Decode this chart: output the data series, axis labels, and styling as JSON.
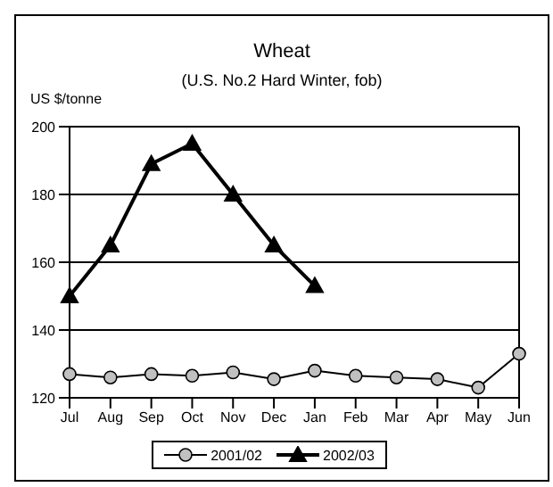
{
  "chart_data": {
    "type": "line",
    "title": "Wheat",
    "subtitle": "(U.S. No.2 Hard Winter, fob)",
    "ylabel": "US $/tonne",
    "categories": [
      "Jul",
      "Aug",
      "Sep",
      "Oct",
      "Nov",
      "Dec",
      "Jan",
      "Feb",
      "Mar",
      "Apr",
      "May",
      "Jun"
    ],
    "series": [
      {
        "name": "2001/02",
        "color": "#000000",
        "marker": "circle",
        "values": [
          127,
          126,
          127,
          126.5,
          127.5,
          125.5,
          128,
          126.5,
          126,
          125.5,
          123,
          133
        ]
      },
      {
        "name": "2002/03",
        "color": "#000000",
        "marker": "triangle",
        "values": [
          150,
          165,
          189,
          195,
          180,
          165,
          153,
          null,
          null,
          null,
          null,
          null
        ]
      }
    ],
    "ylim": [
      120,
      200
    ],
    "yticks": [
      120,
      140,
      160,
      180,
      200
    ],
    "grid": "y",
    "legend": "bottom"
  }
}
